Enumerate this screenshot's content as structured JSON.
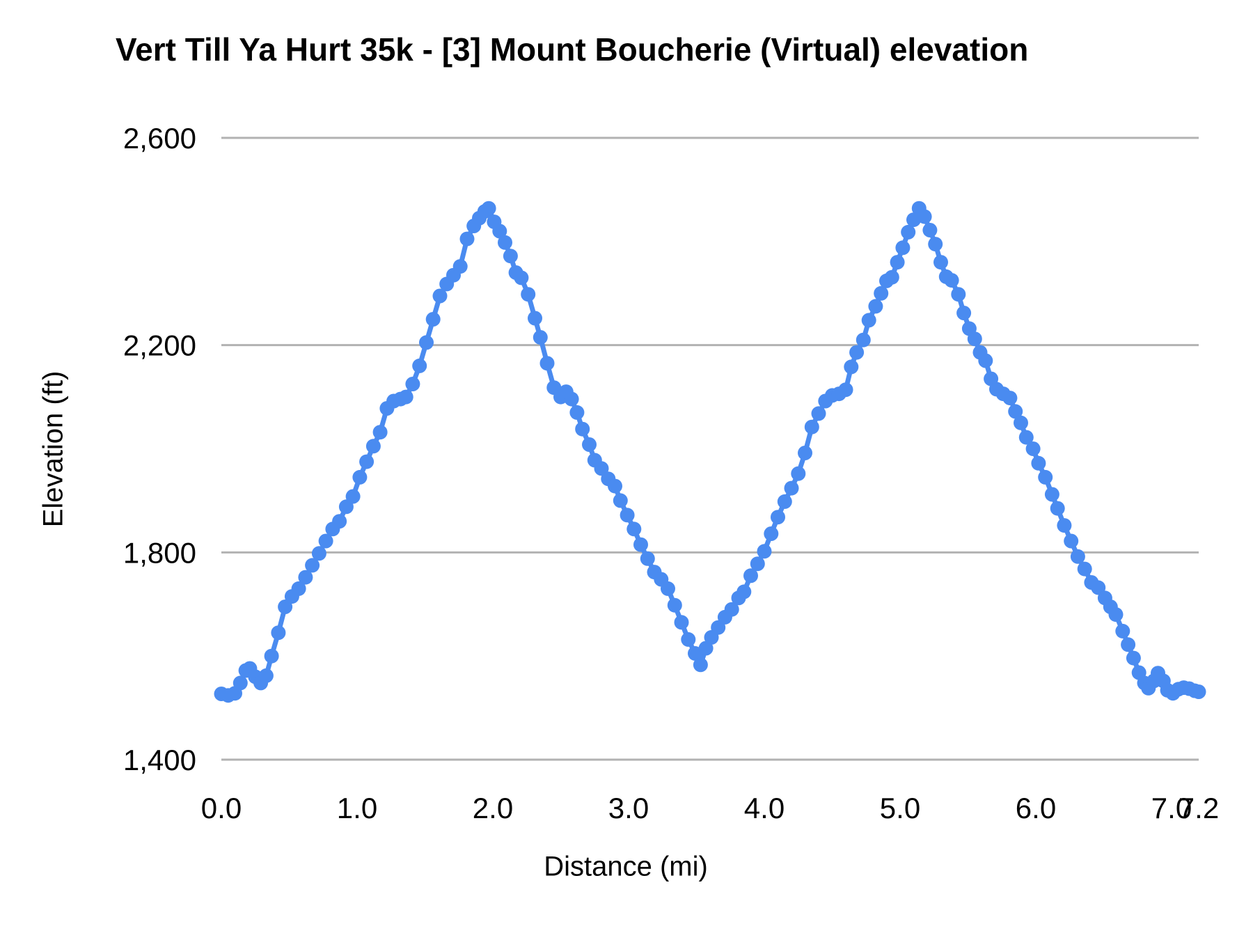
{
  "chart_data": {
    "type": "line",
    "markers": true,
    "title": "Vert Till Ya Hurt 35k - [3] Mount Boucherie (Virtual) elevation",
    "xlabel": "Distance (mi)",
    "ylabel": "Elevation (ft)",
    "xlim": [
      0,
      7.2
    ],
    "ylim": [
      1400,
      2600
    ],
    "grid": true,
    "legend": "none",
    "gridline_color": "#b2b2b2",
    "x_ticks": [
      0,
      1,
      2,
      3,
      4,
      5,
      6,
      7,
      7.2
    ],
    "x_tick_labels": [
      "0.0",
      "1.0",
      "2.0",
      "3.0",
      "4.0",
      "5.0",
      "6.0",
      "7.0",
      "7.2"
    ],
    "y_ticks": [
      1400,
      1800,
      2200,
      2600
    ],
    "y_tick_labels": [
      "1,400",
      "1,800",
      "2,200",
      "2,600"
    ],
    "series": [
      {
        "color": "#4a8bf0",
        "points": [
          [
            0.0,
            1527
          ],
          [
            0.05,
            1524
          ],
          [
            0.1,
            1528
          ],
          [
            0.14,
            1548
          ],
          [
            0.18,
            1572
          ],
          [
            0.21,
            1576
          ],
          [
            0.25,
            1560
          ],
          [
            0.29,
            1548
          ],
          [
            0.33,
            1562
          ],
          [
            0.37,
            1600
          ],
          [
            0.42,
            1645
          ],
          [
            0.47,
            1695
          ],
          [
            0.52,
            1715
          ],
          [
            0.57,
            1730
          ],
          [
            0.62,
            1752
          ],
          [
            0.67,
            1775
          ],
          [
            0.72,
            1798
          ],
          [
            0.77,
            1822
          ],
          [
            0.82,
            1845
          ],
          [
            0.87,
            1860
          ],
          [
            0.92,
            1888
          ],
          [
            0.97,
            1908
          ],
          [
            1.02,
            1945
          ],
          [
            1.07,
            1975
          ],
          [
            1.12,
            2005
          ],
          [
            1.17,
            2032
          ],
          [
            1.22,
            2078
          ],
          [
            1.27,
            2092
          ],
          [
            1.32,
            2096
          ],
          [
            1.36,
            2100
          ],
          [
            1.41,
            2125
          ],
          [
            1.46,
            2160
          ],
          [
            1.51,
            2205
          ],
          [
            1.56,
            2250
          ],
          [
            1.61,
            2295
          ],
          [
            1.66,
            2318
          ],
          [
            1.71,
            2335
          ],
          [
            1.76,
            2352
          ],
          [
            1.81,
            2405
          ],
          [
            1.86,
            2430
          ],
          [
            1.9,
            2445
          ],
          [
            1.94,
            2458
          ],
          [
            1.97,
            2464
          ],
          [
            2.01,
            2438
          ],
          [
            2.05,
            2420
          ],
          [
            2.09,
            2398
          ],
          [
            2.13,
            2372
          ],
          [
            2.17,
            2340
          ],
          [
            2.21,
            2330
          ],
          [
            2.26,
            2298
          ],
          [
            2.31,
            2252
          ],
          [
            2.35,
            2215
          ],
          [
            2.4,
            2165
          ],
          [
            2.45,
            2118
          ],
          [
            2.5,
            2100
          ],
          [
            2.54,
            2110
          ],
          [
            2.58,
            2096
          ],
          [
            2.62,
            2070
          ],
          [
            2.66,
            2038
          ],
          [
            2.71,
            2008
          ],
          [
            2.75,
            1978
          ],
          [
            2.8,
            1962
          ],
          [
            2.85,
            1942
          ],
          [
            2.9,
            1928
          ],
          [
            2.94,
            1900
          ],
          [
            2.99,
            1872
          ],
          [
            3.04,
            1845
          ],
          [
            3.09,
            1815
          ],
          [
            3.14,
            1788
          ],
          [
            3.19,
            1762
          ],
          [
            3.24,
            1748
          ],
          [
            3.29,
            1730
          ],
          [
            3.34,
            1698
          ],
          [
            3.39,
            1665
          ],
          [
            3.44,
            1632
          ],
          [
            3.49,
            1605
          ],
          [
            3.53,
            1583
          ],
          [
            3.57,
            1615
          ],
          [
            3.61,
            1636
          ],
          [
            3.66,
            1655
          ],
          [
            3.71,
            1675
          ],
          [
            3.76,
            1690
          ],
          [
            3.81,
            1712
          ],
          [
            3.85,
            1724
          ],
          [
            3.9,
            1755
          ],
          [
            3.95,
            1778
          ],
          [
            4.0,
            1802
          ],
          [
            4.05,
            1836
          ],
          [
            4.1,
            1868
          ],
          [
            4.15,
            1898
          ],
          [
            4.2,
            1924
          ],
          [
            4.25,
            1952
          ],
          [
            4.3,
            1992
          ],
          [
            4.35,
            2042
          ],
          [
            4.4,
            2068
          ],
          [
            4.45,
            2092
          ],
          [
            4.5,
            2103
          ],
          [
            4.55,
            2106
          ],
          [
            4.6,
            2114
          ],
          [
            4.64,
            2158
          ],
          [
            4.68,
            2186
          ],
          [
            4.73,
            2210
          ],
          [
            4.77,
            2248
          ],
          [
            4.82,
            2275
          ],
          [
            4.86,
            2300
          ],
          [
            4.9,
            2324
          ],
          [
            4.94,
            2331
          ],
          [
            4.98,
            2360
          ],
          [
            5.02,
            2388
          ],
          [
            5.06,
            2418
          ],
          [
            5.1,
            2442
          ],
          [
            5.14,
            2464
          ],
          [
            5.18,
            2448
          ],
          [
            5.22,
            2422
          ],
          [
            5.26,
            2395
          ],
          [
            5.3,
            2360
          ],
          [
            5.34,
            2332
          ],
          [
            5.38,
            2325
          ],
          [
            5.43,
            2298
          ],
          [
            5.47,
            2262
          ],
          [
            5.51,
            2232
          ],
          [
            5.55,
            2212
          ],
          [
            5.59,
            2186
          ],
          [
            5.63,
            2170
          ],
          [
            5.67,
            2135
          ],
          [
            5.71,
            2115
          ],
          [
            5.76,
            2106
          ],
          [
            5.81,
            2098
          ],
          [
            5.85,
            2072
          ],
          [
            5.89,
            2050
          ],
          [
            5.93,
            2022
          ],
          [
            5.98,
            2000
          ],
          [
            6.02,
            1972
          ],
          [
            6.07,
            1945
          ],
          [
            6.12,
            1912
          ],
          [
            6.16,
            1885
          ],
          [
            6.21,
            1852
          ],
          [
            6.26,
            1822
          ],
          [
            6.31,
            1792
          ],
          [
            6.36,
            1768
          ],
          [
            6.41,
            1742
          ],
          [
            6.46,
            1732
          ],
          [
            6.51,
            1712
          ],
          [
            6.55,
            1695
          ],
          [
            6.59,
            1680
          ],
          [
            6.64,
            1648
          ],
          [
            6.68,
            1622
          ],
          [
            6.72,
            1596
          ],
          [
            6.76,
            1568
          ],
          [
            6.8,
            1548
          ],
          [
            6.83,
            1538
          ],
          [
            6.87,
            1552
          ],
          [
            6.9,
            1567
          ],
          [
            6.94,
            1552
          ],
          [
            6.97,
            1534
          ],
          [
            7.01,
            1528
          ],
          [
            7.05,
            1536
          ],
          [
            7.09,
            1539
          ],
          [
            7.13,
            1537
          ],
          [
            7.17,
            1533
          ],
          [
            7.2,
            1531
          ]
        ]
      }
    ]
  }
}
